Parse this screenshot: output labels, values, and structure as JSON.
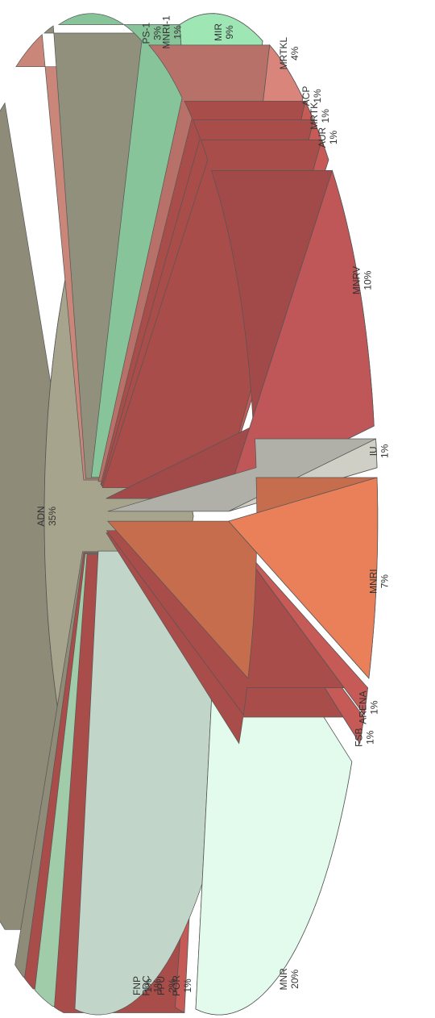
{
  "chart_data": {
    "type": "pie",
    "title": "",
    "slices": [
      {
        "label": "ADN",
        "value": 35,
        "pct_text": "35%",
        "color": "#a7a48d"
      },
      {
        "label": "FNP",
        "value": 1,
        "pct_text": "1%",
        "color": "#a7a48d"
      },
      {
        "label": "PDC",
        "value": 1,
        "pct_text": "1%",
        "color": "#c65a57"
      },
      {
        "label": "FPU",
        "value": 2,
        "pct_text": "2%",
        "color": "#bdf0c8"
      },
      {
        "label": "POR",
        "value": 1,
        "pct_text": "1%",
        "color": "#c65a57"
      },
      {
        "label": "MNR",
        "value": 20,
        "pct_text": "20%",
        "color": "#e3fbec"
      },
      {
        "label": "FSB",
        "value": 1,
        "pct_text": "1%",
        "color": "#c65a57"
      },
      {
        "label": "ARENA",
        "value": 1,
        "pct_text": "1%",
        "color": "#c65a57"
      },
      {
        "label": "MNRI",
        "value": 7,
        "pct_text": "7%",
        "color": "#e9805a"
      },
      {
        "label": "IU",
        "value": 1,
        "pct_text": "1%",
        "color": "#cfcfc6"
      },
      {
        "label": "MNRV",
        "value": 10,
        "pct_text": "10%",
        "color": "#bf5657"
      },
      {
        "label": "AUR",
        "value": 1,
        "pct_text": "1%",
        "color": "#c65a57"
      },
      {
        "label": "MRTK",
        "value": 1,
        "pct_text": "1%",
        "color": "#c65a57"
      },
      {
        "label": "ACP",
        "value": 1,
        "pct_text": "1%",
        "color": "#c65a57"
      },
      {
        "label": "MRTKL",
        "value": 4,
        "pct_text": "4%",
        "color": "#d9857c"
      },
      {
        "label": "MIR",
        "value": 9,
        "pct_text": "9%",
        "color": "#9fe6b5"
      },
      {
        "label": "MNRI-1",
        "value": 1,
        "pct_text": "1%",
        "color": "#a9a993"
      },
      {
        "label": "PS-1",
        "value": 3,
        "pct_text": "3%",
        "color": "#ec9e8e"
      }
    ]
  }
}
